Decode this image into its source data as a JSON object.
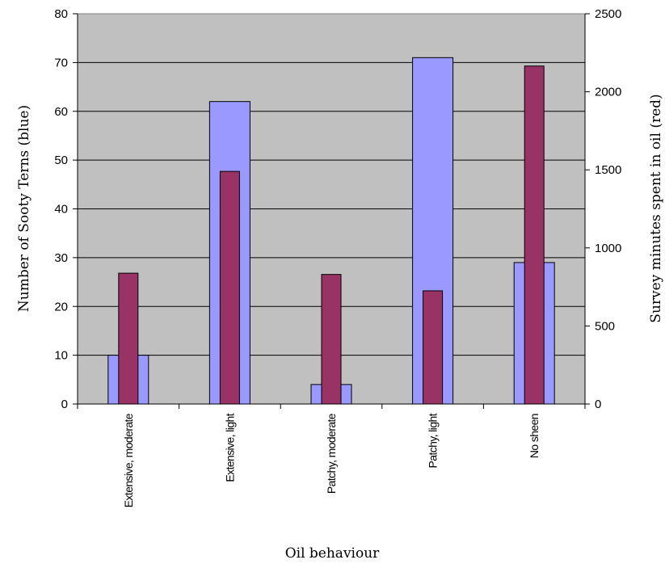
{
  "chart_data": {
    "type": "bar",
    "categories": [
      "Extensive, moderate",
      "Extensive, light",
      "Patchy, moderate",
      "Patchy, light",
      "No sheen"
    ],
    "series": [
      {
        "values": [
          10,
          62,
          4,
          71,
          29
        ],
        "axis": "left",
        "color": "#9999ff"
      },
      {
        "values": [
          838,
          1490,
          830,
          725,
          2165
        ],
        "axis": "right",
        "color": "#993366"
      }
    ],
    "xlabel": "Oil behaviour",
    "ylabel": "Number of Sooty Terns (blue)",
    "y2label": "Survey minutes spent in oil (red)",
    "ylim": [
      0,
      80
    ],
    "y2lim": [
      0,
      2500
    ],
    "yticks": [
      0,
      10,
      20,
      30,
      40,
      50,
      60,
      70,
      80
    ],
    "y2ticks": [
      0,
      500,
      1000,
      1500,
      2000,
      2500
    ],
    "grid": true,
    "plot_background": "#c0c0c0"
  }
}
